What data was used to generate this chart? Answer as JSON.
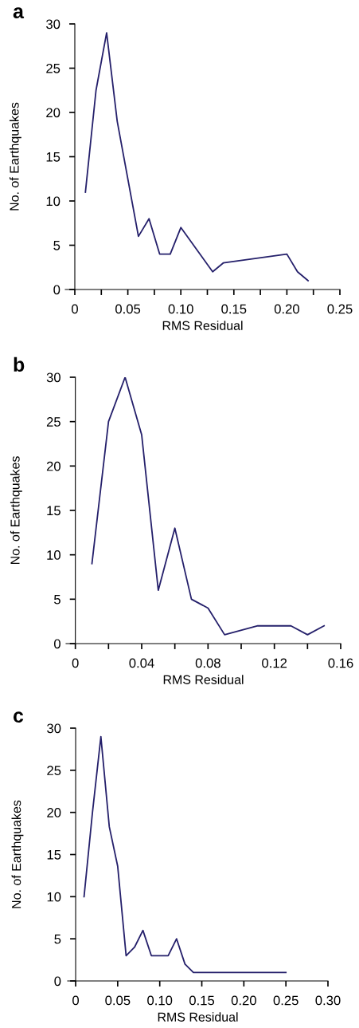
{
  "chart_data": [
    {
      "type": "line",
      "annotations": [
        "a"
      ],
      "xlabel": "RMS Residual",
      "ylabel": "No. of Earthquakes",
      "grid": false,
      "marker": "none",
      "line_style": "solid",
      "series": [
        {
          "color": "#25206b",
          "x": [
            0.01,
            0.02,
            0.03,
            0.04,
            0.06,
            0.07,
            0.08,
            0.09,
            0.1,
            0.13,
            0.14,
            0.2,
            0.21,
            0.22
          ],
          "values": [
            11,
            22.5,
            29,
            19,
            6,
            8,
            4,
            4,
            7,
            2,
            3,
            4,
            2,
            1
          ]
        }
      ],
      "xlim": [
        -0.009,
        0.25
      ],
      "xticks": [
        0,
        {
          "value": 0.025,
          "label": null
        },
        0.05,
        {
          "value": 0.075,
          "label": null
        },
        {
          "value": 0.1,
          "label": "0.10"
        },
        {
          "value": 0.125,
          "label": null
        },
        0.15,
        {
          "value": 0.175,
          "label": null
        },
        {
          "value": 0.2,
          "label": "0.20"
        },
        {
          "value": 0.225,
          "label": null
        },
        0.25
      ],
      "ylim": [
        0,
        30
      ],
      "yticks": [
        0,
        5,
        10,
        15,
        20,
        25,
        30
      ]
    },
    {
      "type": "line",
      "annotations": [
        "b"
      ],
      "xlabel": "RMS Residual",
      "ylabel": "No. of Earthquakes",
      "grid": false,
      "marker": "none",
      "line_style": "solid",
      "series": [
        {
          "color": "#25206b",
          "x": [
            0.01,
            0.02,
            0.03,
            0.04,
            0.05,
            0.06,
            0.07,
            0.08,
            0.09,
            0.11,
            0.12,
            0.13,
            0.14,
            0.15
          ],
          "values": [
            9,
            25,
            30,
            23.5,
            6,
            13,
            5,
            4,
            1,
            2,
            2,
            2,
            1,
            2
          ]
        }
      ],
      "xlim": [
        -0.0056,
        0.16
      ],
      "xticks": [
        0,
        {
          "value": 0.02,
          "label": null
        },
        0.04,
        {
          "value": 0.06,
          "label": null
        },
        0.08,
        {
          "value": 0.1,
          "label": null
        },
        0.12,
        {
          "value": 0.14,
          "label": null
        },
        0.16
      ],
      "ylim": [
        0,
        30
      ],
      "yticks": [
        0,
        5,
        10,
        15,
        20,
        25,
        30
      ]
    },
    {
      "type": "line",
      "annotations": [
        "c"
      ],
      "xlabel": "RMS Residual",
      "ylabel": "No. of Earthquakes",
      "grid": false,
      "marker": "none",
      "line_style": "solid",
      "series": [
        {
          "color": "#25206b",
          "x": [
            0.01,
            0.02,
            0.03,
            0.04,
            0.05,
            0.06,
            0.07,
            0.08,
            0.09,
            0.11,
            0.12,
            0.13,
            0.14,
            0.25
          ],
          "values": [
            10,
            20,
            29,
            18.3,
            13.6,
            3,
            4,
            6,
            3,
            3,
            5,
            2,
            1,
            1
          ]
        }
      ],
      "xlim": [
        -0.0095,
        0.3
      ],
      "xticks": [
        0,
        0.05,
        {
          "value": 0.1,
          "label": "0.10"
        },
        0.15,
        {
          "value": 0.2,
          "label": "0.20"
        },
        0.25,
        {
          "value": 0.3,
          "label": "0.30"
        }
      ],
      "ylim": [
        0,
        30
      ],
      "yticks": [
        0,
        5,
        10,
        15,
        20,
        25,
        30
      ]
    }
  ]
}
